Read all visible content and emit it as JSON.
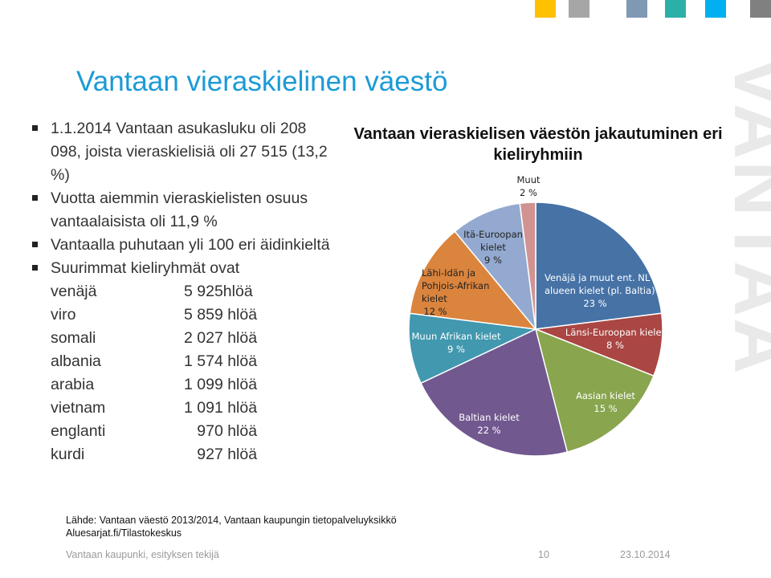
{
  "slide": {
    "title": "Vantaan vieraskielinen väestö",
    "watermark": "VANTAA",
    "accent_colors": [
      "#ffc000",
      "#a6a6a6",
      "#7f98b4",
      "#2bb0a8",
      "#00b0f0",
      "#808080"
    ],
    "bullets": [
      "1.1.2014 Vantaan asukasluku oli 208 098, joista vieraskielisiä oli 27 515 (13,2 %)",
      "Vuotta aiemmin vieraskielisten osuus vantaalaisista oli 11,9 %",
      "Vantaalla puhutaan yli 100 eri äidinkieltä",
      "Suurimmat kieliryhmät ovat"
    ],
    "languages": [
      {
        "name": "venäjä",
        "count": "5 925hlöä"
      },
      {
        "name": "viro",
        "count": "5 859 hlöä"
      },
      {
        "name": "somali",
        "count": "2 027 hlöä"
      },
      {
        "name": "albania",
        "count": "1 574 hlöä"
      },
      {
        "name": "arabia",
        "count": "1 099 hlöä"
      },
      {
        "name": "vietnam",
        "count": "1 091 hlöä"
      },
      {
        "name": "englanti",
        "count": "   970 hlöä"
      },
      {
        "name": "kurdi",
        "count": "   927 hlöä"
      }
    ],
    "source_line1": "Lähde: Vantaan väestö 2013/2014, Vantaan kaupungin tietopalveluyksikkö",
    "source_line2": "Aluesarjat.fi/Tilastokeskus",
    "footer_org": "Vantaan kaupunki, esityksen tekijä",
    "footer_page": "10",
    "footer_date": "23.10.2014"
  },
  "chart_data": {
    "type": "pie",
    "title": "Vantaan vieraskielisen väestön jakautuminen eri kieliryhmiin",
    "legend": "none",
    "slices": [
      {
        "label": "Venäjä ja muut ent. NL alueen kielet (pl. Baltia)",
        "value": 23,
        "value_label": "23 %",
        "color": "#4672a6"
      },
      {
        "label": "Länsi-Euroopan kielet",
        "value": 8,
        "value_label": "8 %",
        "color": "#aa4643"
      },
      {
        "label": "Aasian kielet",
        "value": 15,
        "value_label": "15 %",
        "color": "#89a54e"
      },
      {
        "label": "Baltian kielet",
        "value": 22,
        "value_label": "22 %",
        "color": "#71588f"
      },
      {
        "label": "Muun Afrikan kielet",
        "value": 9,
        "value_label": "9 %",
        "color": "#4198af"
      },
      {
        "label": "Lähi-Idän ja Pohjois-Afrikan kielet",
        "value": 12,
        "value_label": "12 %",
        "color": "#db843d"
      },
      {
        "label": "Itä-Euroopan kielet",
        "value": 9,
        "value_label": "9 %",
        "color": "#93a9cf"
      },
      {
        "label": "Muut",
        "value": 2,
        "value_label": "2 %",
        "color": "#d19392"
      }
    ]
  }
}
